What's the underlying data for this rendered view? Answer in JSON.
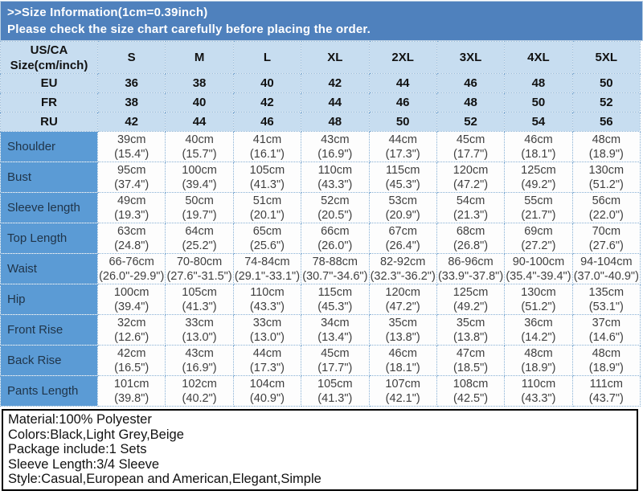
{
  "banner": {
    "line1": ">>Size Information(1cm=0.39inch)",
    "line2": "Please check the size chart carefully before placing the order."
  },
  "table": {
    "corner_header": "US/CA\nSize(cm/inch)",
    "size_columns": [
      "S",
      "M",
      "L",
      "XL",
      "2XL",
      "3XL",
      "4XL",
      "5XL"
    ],
    "region_rows": [
      {
        "label": "EU",
        "values": [
          "36",
          "38",
          "40",
          "42",
          "44",
          "46",
          "48",
          "50"
        ]
      },
      {
        "label": "FR",
        "values": [
          "38",
          "40",
          "42",
          "44",
          "46",
          "48",
          "50",
          "52"
        ]
      },
      {
        "label": "RU",
        "values": [
          "42",
          "44",
          "46",
          "48",
          "50",
          "52",
          "54",
          "56"
        ]
      }
    ],
    "measurement_rows": [
      {
        "label": "Shoulder",
        "cells": [
          "39cm\n(15.4\")",
          "40cm\n(15.7\")",
          "41cm\n(16.1\")",
          "43cm\n(16.9\")",
          "44cm\n(17.3\")",
          "45cm\n(17.7\")",
          "46cm\n(18.1\")",
          "48cm\n(18.9\")"
        ]
      },
      {
        "label": "Bust",
        "cells": [
          "95cm\n(37.4\")",
          "100cm\n(39.4\")",
          "105cm\n(41.3\")",
          "110cm\n(43.3\")",
          "115cm\n(45.3\")",
          "120cm\n(47.2\")",
          "125cm\n(49.2\")",
          "130cm\n(51.2\")"
        ]
      },
      {
        "label": "Sleeve length",
        "cells": [
          "49cm\n(19.3\")",
          "50cm\n(19.7\")",
          "51cm\n(20.1\")",
          "52cm\n(20.5\")",
          "53cm\n(20.9\")",
          "54cm\n(21.3\")",
          "55cm\n(21.7\")",
          "56cm\n(22.0\")"
        ]
      },
      {
        "label": "Top Length",
        "cells": [
          "63cm\n(24.8\")",
          "64cm\n(25.2\")",
          "65cm\n(25.6\")",
          "66cm\n(26.0\")",
          "67cm\n(26.4\")",
          "68cm\n(26.8\")",
          "69cm\n(27.2\")",
          "70cm\n(27.6\")"
        ]
      },
      {
        "label": "Waist",
        "cells": [
          "66-76cm\n(26.0\"-29.9\")",
          "70-80cm\n(27.6\"-31.5\")",
          "74-84cm\n(29.1\"-33.1\")",
          "78-88cm\n(30.7\"-34.6\")",
          "82-92cm\n(32.3\"-36.2\")",
          "86-96cm\n(33.9\"-37.8\")",
          "90-100cm\n(35.4\"-39.4\")",
          "94-104cm\n(37.0\"-40.9\")"
        ]
      },
      {
        "label": "Hip",
        "cells": [
          "100cm\n(39.4\")",
          "105cm\n(41.3\")",
          "110cm\n(43.3\")",
          "115cm\n(45.3\")",
          "120cm\n(47.2\")",
          "125cm\n(49.2\")",
          "130cm\n(51.2\")",
          "135cm\n(53.1\")"
        ]
      },
      {
        "label": "Front Rise",
        "cells": [
          "32cm\n(12.6\")",
          "33cm\n(13.0\")",
          "33cm\n(13.0\")",
          "34cm\n(13.4\")",
          "35cm\n(13.8\")",
          "35cm\n(13.8\")",
          "36cm\n(14.2\")",
          "37cm\n(14.6\")"
        ]
      },
      {
        "label": "Back Rise",
        "cells": [
          "42cm\n(16.5\")",
          "43cm\n(16.9\")",
          "44cm\n(17.3\")",
          "45cm\n(17.7\")",
          "46cm\n(18.1\")",
          "47cm\n(18.5\")",
          "48cm\n(18.9\")",
          "48cm\n(18.9\")"
        ]
      },
      {
        "label": "Pants Length",
        "cells": [
          "101cm\n(39.8\")",
          "102cm\n(40.2\")",
          "104cm\n(40.9\")",
          "105cm\n(41.3\")",
          "107cm\n(42.1\")",
          "108cm\n(42.5\")",
          "110cm\n(43.3\")",
          "111cm\n(43.7\")"
        ]
      }
    ]
  },
  "footer": {
    "lines": [
      "Material:100% Polyester",
      "Colors:Black,Light Grey,Beige",
      "Package include:1 Sets",
      "Sleeve Length:3/4 Sleeve",
      "Style:Casual,European and American,Elegant,Simple"
    ]
  },
  "colors": {
    "banner_bg": "#4f81bd",
    "header_row_bg": "#c7ddf0",
    "measurement_label_bg": "#5b9bd5",
    "grid_line": "#85aed3",
    "banner_text": "#ffffff",
    "body_text": "#3f3f3f",
    "info_box_border": "#000000"
  }
}
